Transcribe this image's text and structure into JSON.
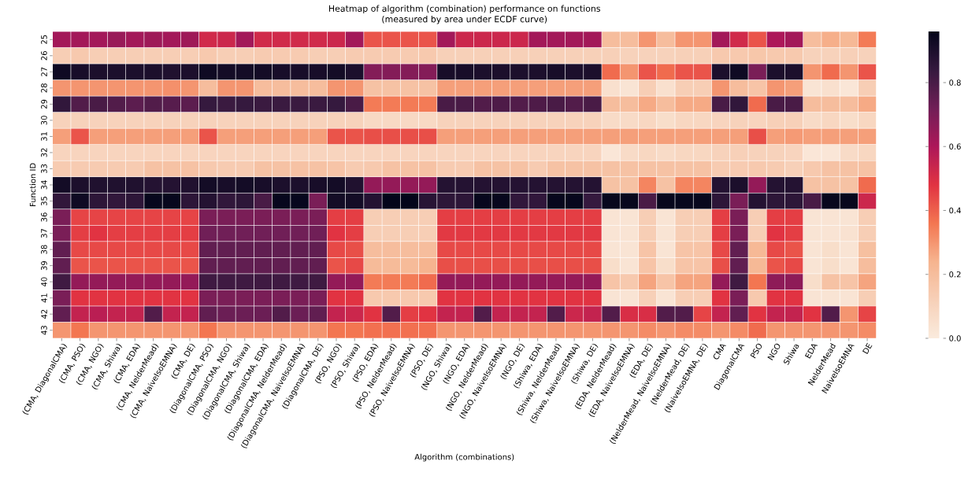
{
  "chart_data": {
    "type": "heatmap",
    "title": "Heatmap of algorithm (combination) performance on functions",
    "subtitle": "(measured by area under ECDF curve)",
    "xlabel": "Algorithm (combinations)",
    "ylabel": "Function ID",
    "categories": [
      "(CMA, DiagonalCMA)",
      "(CMA, PSO)",
      "(CMA, NGO)",
      "(CMA, Shiwa)",
      "(CMA, EDA)",
      "(CMA, NelderMead)",
      "(CMA, NaiveIsoEMNA)",
      "(CMA, DE)",
      "(DiagonalCMA, PSO)",
      "(DiagonalCMA, NGO)",
      "(DiagonalCMA, Shiwa)",
      "(DiagonalCMA, EDA)",
      "(DiagonalCMA, NelderMead)",
      "(DiagonalCMA, NaiveIsoEMNA)",
      "(DiagonalCMA, DE)",
      "(PSO, NGO)",
      "(PSO, Shiwa)",
      "(PSO, EDA)",
      "(PSO, NelderMead)",
      "(PSO, NaiveIsoEMNA)",
      "(PSO, DE)",
      "(NGO, Shiwa)",
      "(NGO, EDA)",
      "(NGO, NelderMead)",
      "(NGO, NaiveIsoEMNA)",
      "(NGO, DE)",
      "(Shiwa, EDA)",
      "(Shiwa, NelderMead)",
      "(Shiwa, NaiveIsoEMNA)",
      "(Shiwa, DE)",
      "(EDA, NelderMead)",
      "(EDA, NaiveIsoEMNA)",
      "(EDA, DE)",
      "(NelderMead, NaiveIsoEMNA)",
      "(NelderMead, DE)",
      "(NaiveIsoEMNA, DE)",
      "CMA",
      "DiagonalCMA",
      "PSO",
      "NGO",
      "Shiwa",
      "EDA",
      "NelderMead",
      "NaiveIsoEMNA",
      "DE"
    ],
    "y_categories": [
      "25",
      "26",
      "27",
      "28",
      "29",
      "30",
      "31",
      "32",
      "33",
      "34",
      "35",
      "36",
      "37",
      "38",
      "39",
      "40",
      "41",
      "42",
      "43"
    ],
    "cells": [
      [
        0.62,
        0.62,
        0.62,
        0.64,
        0.62,
        0.63,
        0.62,
        0.63,
        0.52,
        0.53,
        0.62,
        0.52,
        0.52,
        0.52,
        0.52,
        0.53,
        0.62,
        0.42,
        0.42,
        0.42,
        0.42,
        0.62,
        0.53,
        0.53,
        0.53,
        0.53,
        0.62,
        0.62,
        0.62,
        0.62,
        0.2,
        0.2,
        0.3,
        0.2,
        0.3,
        0.3,
        0.62,
        0.52,
        0.42,
        0.6,
        0.62,
        0.2,
        0.25,
        0.22,
        0.35
      ],
      [
        0.13,
        0.15,
        0.13,
        0.13,
        0.13,
        0.13,
        0.13,
        0.13,
        0.15,
        0.13,
        0.13,
        0.14,
        0.14,
        0.14,
        0.13,
        0.13,
        0.14,
        0.14,
        0.14,
        0.14,
        0.15,
        0.12,
        0.12,
        0.12,
        0.12,
        0.12,
        0.12,
        0.12,
        0.12,
        0.12,
        0.12,
        0.11,
        0.11,
        0.11,
        0.12,
        0.12,
        0.15,
        0.15,
        0.16,
        0.15,
        0.15,
        0.11,
        0.11,
        0.12,
        0.11
      ],
      [
        0.93,
        0.91,
        0.9,
        0.9,
        0.9,
        0.9,
        0.89,
        0.9,
        0.93,
        0.92,
        0.92,
        0.92,
        0.91,
        0.91,
        0.91,
        0.92,
        0.9,
        0.68,
        0.68,
        0.68,
        0.68,
        0.91,
        0.91,
        0.9,
        0.9,
        0.9,
        0.9,
        0.91,
        0.9,
        0.9,
        0.38,
        0.3,
        0.42,
        0.38,
        0.42,
        0.42,
        0.9,
        0.93,
        0.7,
        0.9,
        0.9,
        0.3,
        0.38,
        0.3,
        0.42
      ],
      [
        0.3,
        0.3,
        0.3,
        0.3,
        0.3,
        0.3,
        0.31,
        0.3,
        0.2,
        0.3,
        0.3,
        0.2,
        0.2,
        0.2,
        0.2,
        0.3,
        0.3,
        0.18,
        0.18,
        0.18,
        0.18,
        0.28,
        0.28,
        0.28,
        0.28,
        0.28,
        0.28,
        0.28,
        0.28,
        0.28,
        0.05,
        0.03,
        0.13,
        0.05,
        0.13,
        0.13,
        0.3,
        0.2,
        0.17,
        0.3,
        0.28,
        0.03,
        0.05,
        0.02,
        0.13
      ],
      [
        0.85,
        0.78,
        0.8,
        0.78,
        0.76,
        0.78,
        0.77,
        0.76,
        0.84,
        0.83,
        0.84,
        0.83,
        0.83,
        0.83,
        0.83,
        0.84,
        0.8,
        0.35,
        0.35,
        0.35,
        0.35,
        0.8,
        0.8,
        0.78,
        0.79,
        0.78,
        0.79,
        0.8,
        0.78,
        0.8,
        0.2,
        0.2,
        0.26,
        0.2,
        0.26,
        0.26,
        0.8,
        0.85,
        0.38,
        0.8,
        0.8,
        0.2,
        0.2,
        0.2,
        0.26
      ],
      [
        0.11,
        0.11,
        0.11,
        0.11,
        0.11,
        0.11,
        0.11,
        0.11,
        0.11,
        0.11,
        0.11,
        0.11,
        0.11,
        0.11,
        0.11,
        0.11,
        0.11,
        0.08,
        0.08,
        0.08,
        0.08,
        0.11,
        0.11,
        0.11,
        0.11,
        0.11,
        0.11,
        0.11,
        0.11,
        0.11,
        0.07,
        0.07,
        0.09,
        0.06,
        0.09,
        0.09,
        0.1,
        0.11,
        0.1,
        0.12,
        0.12,
        0.07,
        0.09,
        0.06,
        0.09
      ],
      [
        0.28,
        0.42,
        0.28,
        0.28,
        0.28,
        0.28,
        0.28,
        0.28,
        0.42,
        0.28,
        0.28,
        0.28,
        0.28,
        0.28,
        0.28,
        0.42,
        0.42,
        0.43,
        0.43,
        0.43,
        0.43,
        0.28,
        0.28,
        0.28,
        0.28,
        0.28,
        0.28,
        0.28,
        0.28,
        0.28,
        0.28,
        0.28,
        0.28,
        0.28,
        0.28,
        0.28,
        0.28,
        0.28,
        0.43,
        0.28,
        0.29,
        0.28,
        0.28,
        0.28,
        0.28
      ],
      [
        0.1,
        0.1,
        0.1,
        0.1,
        0.1,
        0.1,
        0.1,
        0.1,
        0.1,
        0.1,
        0.1,
        0.1,
        0.1,
        0.1,
        0.1,
        0.1,
        0.1,
        0.1,
        0.1,
        0.1,
        0.1,
        0.1,
        0.1,
        0.1,
        0.1,
        0.1,
        0.1,
        0.1,
        0.1,
        0.1,
        0.02,
        0.07,
        0.09,
        0.07,
        0.09,
        0.09,
        0.11,
        0.12,
        0.11,
        0.11,
        0.1,
        0.02,
        0.02,
        0.07,
        0.09
      ],
      [
        0.14,
        0.14,
        0.14,
        0.14,
        0.14,
        0.18,
        0.18,
        0.18,
        0.15,
        0.14,
        0.14,
        0.18,
        0.18,
        0.18,
        0.18,
        0.17,
        0.14,
        0.15,
        0.18,
        0.18,
        0.18,
        0.14,
        0.14,
        0.18,
        0.18,
        0.18,
        0.14,
        0.18,
        0.18,
        0.18,
        0.18,
        0.18,
        0.18,
        0.18,
        0.18,
        0.18,
        0.14,
        0.14,
        0.15,
        0.14,
        0.12,
        0.15,
        0.18,
        0.18,
        0.18
      ],
      [
        0.92,
        0.9,
        0.89,
        0.89,
        0.89,
        0.88,
        0.88,
        0.89,
        0.92,
        0.91,
        0.92,
        0.91,
        0.9,
        0.9,
        0.91,
        0.92,
        0.89,
        0.65,
        0.65,
        0.65,
        0.65,
        0.88,
        0.88,
        0.88,
        0.88,
        0.88,
        0.88,
        0.88,
        0.88,
        0.88,
        0.18,
        0.18,
        0.33,
        0.18,
        0.33,
        0.33,
        0.88,
        0.9,
        0.65,
        0.88,
        0.88,
        0.18,
        0.18,
        0.18,
        0.38
      ],
      [
        0.85,
        0.93,
        0.86,
        0.85,
        0.86,
        0.95,
        0.95,
        0.86,
        0.88,
        0.85,
        0.86,
        0.8,
        0.95,
        0.95,
        0.7,
        0.92,
        0.92,
        0.88,
        0.96,
        0.96,
        0.87,
        0.86,
        0.86,
        0.95,
        0.95,
        0.85,
        0.85,
        0.95,
        0.95,
        0.84,
        0.95,
        0.95,
        0.8,
        0.95,
        0.95,
        0.95,
        0.86,
        0.7,
        0.88,
        0.86,
        0.86,
        0.8,
        0.95,
        0.95,
        0.53
      ],
      [
        0.7,
        0.45,
        0.45,
        0.45,
        0.45,
        0.45,
        0.45,
        0.45,
        0.7,
        0.7,
        0.7,
        0.7,
        0.7,
        0.7,
        0.7,
        0.46,
        0.46,
        0.13,
        0.13,
        0.13,
        0.13,
        0.46,
        0.46,
        0.46,
        0.46,
        0.46,
        0.46,
        0.46,
        0.46,
        0.46,
        0.03,
        0.03,
        0.13,
        0.03,
        0.13,
        0.13,
        0.46,
        0.7,
        0.13,
        0.46,
        0.46,
        0.03,
        0.03,
        0.03,
        0.13
      ],
      [
        0.7,
        0.46,
        0.48,
        0.46,
        0.46,
        0.46,
        0.46,
        0.46,
        0.72,
        0.72,
        0.72,
        0.72,
        0.72,
        0.72,
        0.72,
        0.48,
        0.46,
        0.13,
        0.13,
        0.13,
        0.13,
        0.47,
        0.47,
        0.47,
        0.47,
        0.47,
        0.47,
        0.47,
        0.47,
        0.47,
        0.03,
        0.03,
        0.13,
        0.03,
        0.13,
        0.13,
        0.46,
        0.7,
        0.13,
        0.48,
        0.46,
        0.03,
        0.03,
        0.04,
        0.13
      ],
      [
        0.75,
        0.44,
        0.44,
        0.44,
        0.44,
        0.44,
        0.44,
        0.44,
        0.75,
        0.75,
        0.75,
        0.75,
        0.75,
        0.75,
        0.75,
        0.44,
        0.43,
        0.2,
        0.2,
        0.2,
        0.2,
        0.44,
        0.44,
        0.44,
        0.44,
        0.44,
        0.44,
        0.44,
        0.44,
        0.44,
        0.03,
        0.03,
        0.17,
        0.03,
        0.17,
        0.17,
        0.44,
        0.75,
        0.22,
        0.44,
        0.42,
        0.03,
        0.06,
        0.03,
        0.19
      ],
      [
        0.75,
        0.42,
        0.42,
        0.42,
        0.42,
        0.42,
        0.42,
        0.42,
        0.75,
        0.75,
        0.75,
        0.75,
        0.75,
        0.75,
        0.75,
        0.42,
        0.44,
        0.21,
        0.21,
        0.21,
        0.24,
        0.43,
        0.43,
        0.43,
        0.43,
        0.43,
        0.43,
        0.43,
        0.43,
        0.43,
        0.06,
        0.03,
        0.17,
        0.06,
        0.17,
        0.17,
        0.43,
        0.75,
        0.22,
        0.42,
        0.44,
        0.03,
        0.06,
        0.03,
        0.2
      ],
      [
        0.82,
        0.65,
        0.65,
        0.65,
        0.65,
        0.65,
        0.65,
        0.65,
        0.82,
        0.82,
        0.82,
        0.82,
        0.82,
        0.82,
        0.82,
        0.65,
        0.65,
        0.35,
        0.35,
        0.35,
        0.38,
        0.65,
        0.65,
        0.65,
        0.65,
        0.65,
        0.65,
        0.65,
        0.65,
        0.65,
        0.17,
        0.15,
        0.27,
        0.17,
        0.27,
        0.27,
        0.65,
        0.82,
        0.36,
        0.66,
        0.66,
        0.06,
        0.18,
        0.17,
        0.27
      ],
      [
        0.7,
        0.48,
        0.48,
        0.48,
        0.48,
        0.48,
        0.48,
        0.48,
        0.7,
        0.7,
        0.7,
        0.7,
        0.7,
        0.7,
        0.7,
        0.48,
        0.48,
        0.15,
        0.15,
        0.15,
        0.15,
        0.48,
        0.48,
        0.48,
        0.48,
        0.48,
        0.48,
        0.48,
        0.48,
        0.48,
        0.03,
        0.03,
        0.12,
        0.03,
        0.13,
        0.13,
        0.48,
        0.7,
        0.15,
        0.48,
        0.48,
        0.03,
        0.03,
        0.03,
        0.13
      ],
      [
        0.75,
        0.55,
        0.57,
        0.55,
        0.55,
        0.78,
        0.55,
        0.55,
        0.75,
        0.73,
        0.73,
        0.73,
        0.78,
        0.73,
        0.75,
        0.55,
        0.53,
        0.48,
        0.78,
        0.46,
        0.48,
        0.55,
        0.55,
        0.78,
        0.55,
        0.55,
        0.55,
        0.78,
        0.53,
        0.55,
        0.78,
        0.5,
        0.5,
        0.78,
        0.78,
        0.45,
        0.55,
        0.75,
        0.48,
        0.55,
        0.55,
        0.48,
        0.78,
        0.3,
        0.45
      ],
      [
        0.3,
        0.36,
        0.3,
        0.3,
        0.3,
        0.3,
        0.3,
        0.3,
        0.36,
        0.3,
        0.3,
        0.3,
        0.3,
        0.3,
        0.3,
        0.36,
        0.36,
        0.37,
        0.37,
        0.37,
        0.37,
        0.3,
        0.3,
        0.3,
        0.3,
        0.3,
        0.3,
        0.3,
        0.3,
        0.3,
        0.3,
        0.3,
        0.32,
        0.3,
        0.32,
        0.32,
        0.3,
        0.32,
        0.38,
        0.3,
        0.3,
        0.3,
        0.3,
        0.3,
        0.32
      ]
    ],
    "clim": [
      0,
      0.96
    ],
    "cticks": [
      {
        "value": 0,
        "label": "0.0"
      },
      {
        "value": 0.2,
        "label": "0.2"
      },
      {
        "value": 0.4,
        "label": "0.4"
      },
      {
        "value": 0.6,
        "label": "0.6"
      },
      {
        "value": 0.8,
        "label": "0.8"
      }
    ]
  }
}
